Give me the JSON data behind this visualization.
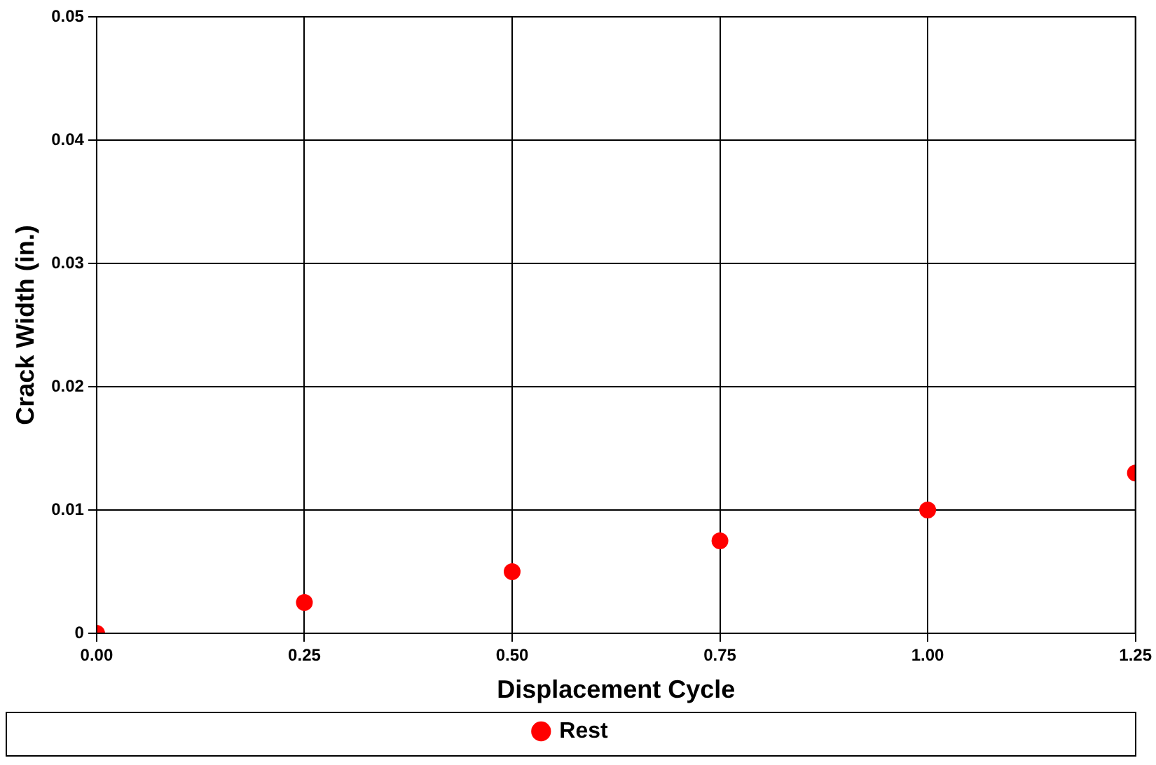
{
  "chart_data": {
    "type": "scatter",
    "xlabel": "Displacement Cycle",
    "ylabel": "Crack Width (in.)",
    "x": [
      0,
      0.25,
      0.5,
      0.75,
      1.0,
      1.25
    ],
    "series": [
      {
        "name": "Rest",
        "color": "#ff0000",
        "values": [
          0,
          0.0025,
          0.005,
          0.0075,
          0.01,
          0.013
        ]
      }
    ],
    "xlim": [
      0,
      1.25
    ],
    "ylim": [
      0,
      0.05
    ],
    "xticks": [
      {
        "value": 0,
        "label": "0.00"
      },
      {
        "value": 0.25,
        "label": "0.25"
      },
      {
        "value": 0.5,
        "label": "0.50"
      },
      {
        "value": 0.75,
        "label": "0.75"
      },
      {
        "value": 1.0,
        "label": "1.00"
      },
      {
        "value": 1.25,
        "label": "1.25"
      }
    ],
    "yticks": [
      0,
      0.01,
      0.02,
      0.03,
      0.04,
      0.05
    ],
    "grid": true,
    "legend": "bottom",
    "marker": "circle"
  }
}
